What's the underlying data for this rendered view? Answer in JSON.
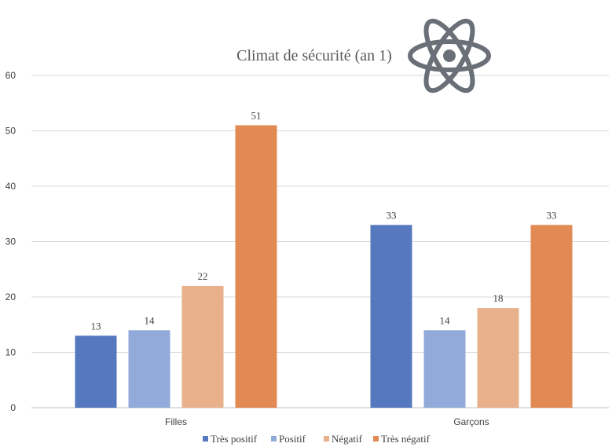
{
  "chart_data": {
    "type": "bar",
    "title": "Climat de sécurité (an 1)",
    "xlabel": "",
    "ylabel": "",
    "ylim": [
      0,
      60
    ],
    "yticks": [
      0,
      10,
      20,
      30,
      40,
      50,
      60
    ],
    "grid": true,
    "legend_position": "bottom",
    "categories": [
      "Filles",
      "Garçons"
    ],
    "series": [
      {
        "name": "Très positif",
        "color": "#5578BE",
        "values": [
          13,
          33
        ]
      },
      {
        "name": "Positif",
        "color": "#91AAD9",
        "values": [
          14,
          14
        ]
      },
      {
        "name": "Négatif",
        "color": "#E9B08C",
        "values": [
          22,
          18
        ]
      },
      {
        "name": "Très négatif",
        "color": "#E28A53",
        "values": [
          51,
          33
        ]
      }
    ]
  },
  "icons": {
    "title_icon": "atom-icon",
    "icon_color": "#6B7078"
  }
}
